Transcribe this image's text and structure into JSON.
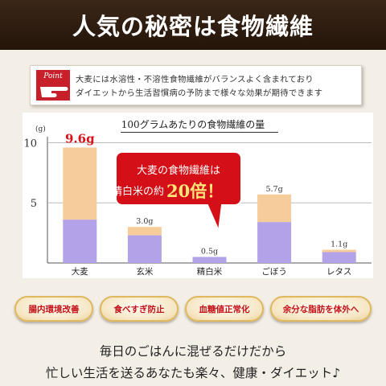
{
  "banner": {
    "title": "人気の秘密は食物繊維"
  },
  "point": {
    "badge": "Point",
    "line1": "大麦には水溶性・不溶性食物繊維がバランスよく含まれており",
    "line2": "ダイエットから生活習慣病の予防まで様々な効果が期待できます"
  },
  "chart_data": {
    "type": "bar",
    "title": "100グラムあたりの食物繊維の量",
    "ylabel": "(g)",
    "ylim": [
      0,
      10.5
    ],
    "yticks": [
      "10",
      "5"
    ],
    "categories": [
      "大麦",
      "玄米",
      "精白米",
      "ごぼう",
      "レタス"
    ],
    "values": [
      9.6,
      3.0,
      0.5,
      5.7,
      1.1
    ],
    "value_labels": [
      "9.6g",
      "3.0g",
      "0.5g",
      "5.7g",
      "1.1g"
    ],
    "soluble_lower": [
      3.6,
      2.3,
      0.5,
      3.4,
      0.9
    ],
    "colors": {
      "lower": "#b3a2e8",
      "upper": "#f5cc9a",
      "accent": "#d8101a"
    },
    "callout": {
      "line1": "大麦の食物繊維は",
      "line2_prefix": "精白米の約",
      "highlight": "20倍！"
    }
  },
  "benefits": [
    "腸内環境改善",
    "食べすぎ防止",
    "血糖値正常化",
    "余分な脂肪を体外へ"
  ],
  "footer": {
    "line1": "毎日のごはんに混ぜるだけだから",
    "line2": "忙しい生活を送るあなたも楽々、健康・ダイエット♪"
  }
}
